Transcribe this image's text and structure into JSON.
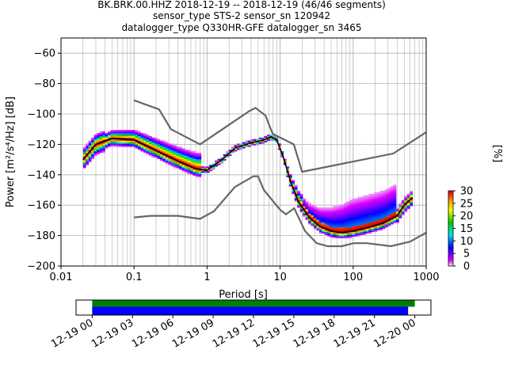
{
  "chart_data": {
    "type": "heatmap",
    "title_lines": [
      "BK.BRK.00.HHZ   2018-12-19 -- 2018-12-19  (46/46 segments)",
      "sensor_type STS-2 sensor_sn 120942",
      "datalogger_type Q330HR-GFE datalogger_sn 3465"
    ],
    "xlabel": "Period [s]",
    "ylabel": "Power [m²/s⁴/Hz] [dB]",
    "x_scale": "log",
    "xlim": [
      0.01,
      1000
    ],
    "ylim": [
      -200,
      -50
    ],
    "x_tick_labels": [
      "0.01",
      "0.1",
      "1",
      "10",
      "100",
      "1000"
    ],
    "x_tick_values": [
      0.01,
      0.1,
      1,
      10,
      100,
      1000
    ],
    "y_ticks": [
      -60,
      -80,
      -100,
      -120,
      -140,
      -160,
      -180,
      -200
    ],
    "y_tick_labels": [
      "−60",
      "−80",
      "−100",
      "−120",
      "−140",
      "−160",
      "−180",
      "−200"
    ],
    "grid": true,
    "mean_curve": {
      "name": "mean PSD",
      "color": "#000000",
      "x": [
        0.02,
        0.03,
        0.05,
        0.1,
        0.2,
        0.4,
        0.7,
        1.0,
        1.5,
        2.5,
        4,
        6,
        7.5,
        9,
        11,
        14,
        18,
        25,
        35,
        50,
        70,
        100,
        150,
        250,
        400,
        500,
        650
      ],
      "y": [
        -130,
        -120,
        -116,
        -117,
        -124,
        -131,
        -136,
        -137,
        -131,
        -122,
        -119,
        -117,
        -115,
        -117,
        -128,
        -145,
        -158,
        -168,
        -174,
        -177,
        -178,
        -177,
        -175,
        -172,
        -167,
        -160,
        -155
      ]
    },
    "noise_models": [
      {
        "name": "NHNM",
        "color": "#666666",
        "x": [
          0.1,
          0.22,
          0.32,
          0.8,
          3.8,
          4.6,
          6.3,
          7.9,
          15.4,
          20,
          354.8,
          1000
        ],
        "y": [
          -91,
          -97,
          -110,
          -120,
          -98,
          -96,
          -101,
          -113,
          -120,
          -138,
          -126,
          -112
        ]
      },
      {
        "name": "NLNM",
        "color": "#666666",
        "x": [
          0.1,
          0.17,
          0.4,
          0.8,
          1.24,
          2.4,
          4.3,
          5,
          6,
          10,
          12,
          15.6,
          21.9,
          31.6,
          45,
          70,
          101,
          154,
          328,
          600,
          1000
        ],
        "y": [
          -168,
          -167,
          -167,
          -169,
          -164,
          -148,
          -141,
          -141,
          -150,
          -163,
          -166,
          -162,
          -177,
          -185,
          -187,
          -187,
          -185,
          -185,
          -187,
          -184,
          -178
        ]
      }
    ],
    "colorbar": {
      "label": "[%]",
      "ticks": [
        "0",
        "5",
        "10",
        "15",
        "20",
        "25",
        "30"
      ],
      "range": [
        0,
        30
      ]
    },
    "coverage": {
      "tick_labels": [
        "12-19 00",
        "12-19 03",
        "12-19 06",
        "12-19 09",
        "12-19 12",
        "12-19 15",
        "12-19 18",
        "12-19 21",
        "12-20 00"
      ],
      "data_start_hour": 0,
      "data_end_hour": 24,
      "psd_end_hour": 23.5,
      "axis_start_hour": -1.2,
      "axis_end_hour": 25.2,
      "colors": {
        "data": "#008000",
        "psd": "#0000ff"
      }
    }
  }
}
